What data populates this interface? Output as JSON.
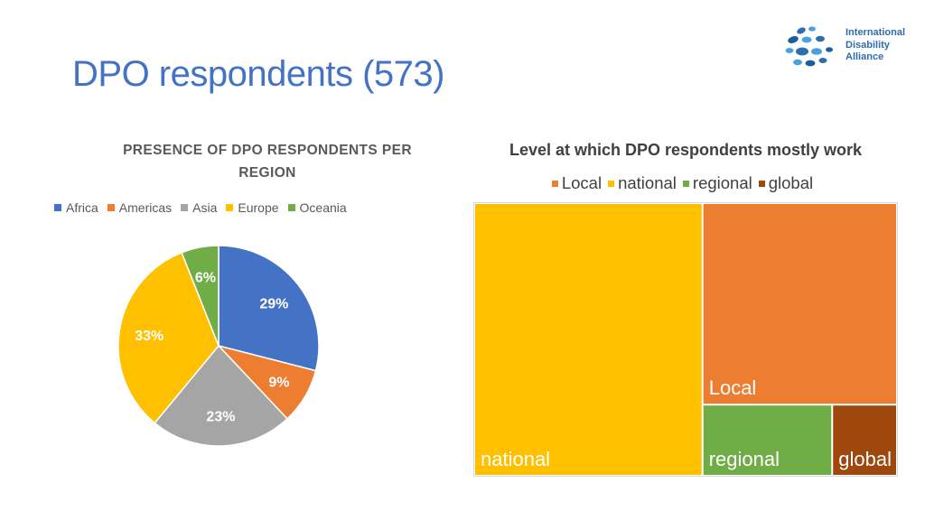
{
  "slide": {
    "title": "DPO respondents (573)"
  },
  "logo": {
    "lines": [
      "International",
      "Disability",
      "Alliance"
    ],
    "icon": "ida-dots-logo"
  },
  "chart_data": [
    {
      "type": "pie",
      "title": "PRESENCE OF DPO RESPONDENTS PER REGION",
      "legend_position": "top",
      "categories": [
        "Africa",
        "Americas",
        "Asia",
        "Europe",
        "Oceania"
      ],
      "values": [
        29,
        9,
        23,
        33,
        6
      ],
      "labels": [
        "29%",
        "9%",
        "23%",
        "33%",
        "6%"
      ],
      "colors": [
        "#4472c4",
        "#ed7d31",
        "#a5a5a5",
        "#ffc000",
        "#70ad47"
      ]
    },
    {
      "type": "treemap",
      "title": "Level at which DPO respondents mostly work",
      "legend_position": "top",
      "categories": [
        "Local",
        "national",
        "regional",
        "global"
      ],
      "legend": [
        "Local",
        "national",
        "regional",
        "global"
      ],
      "values": [
        34,
        54,
        8,
        4
      ],
      "colors": {
        "Local": "#ed7d31",
        "national": "#ffc000",
        "regional": "#70ad47",
        "global": "#9e480e"
      }
    }
  ]
}
